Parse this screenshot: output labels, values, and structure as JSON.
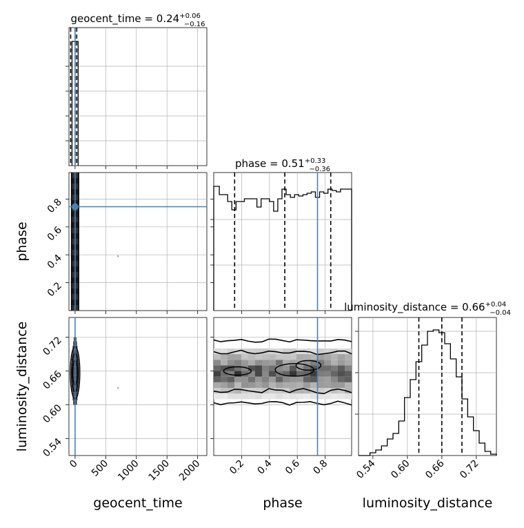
{
  "chart_data": [
    {
      "panel": "geocent_time-histogram",
      "type": "histogram",
      "title_name": "geocent_time",
      "title_value": "0.24",
      "title_plus": "+0.06",
      "title_minus": "−0.16",
      "xlim": [
        -100,
        2150
      ],
      "xticks": [
        0,
        500,
        1000,
        1500,
        2000
      ],
      "bins": [
        [
          -50,
          50,
          1.0
        ]
      ],
      "quantiles": [
        0.08,
        0.24,
        0.3
      ],
      "truth": 0.0,
      "grid": true
    },
    {
      "panel": "phase-histogram",
      "type": "histogram",
      "title_name": "phase",
      "title_value": "0.51",
      "title_plus": "+0.33",
      "title_minus": "−0.36",
      "xlim": [
        0.0,
        0.99
      ],
      "xticks": [
        0.2,
        0.4,
        0.6,
        0.8
      ],
      "ylim": [
        0,
        1.0
      ],
      "bins": [
        [
          0.0,
          0.04,
          0.9
        ],
        [
          0.04,
          0.07,
          0.84
        ],
        [
          0.07,
          0.1,
          0.84
        ],
        [
          0.1,
          0.13,
          0.79
        ],
        [
          0.13,
          0.16,
          0.73
        ],
        [
          0.16,
          0.19,
          0.79
        ],
        [
          0.19,
          0.22,
          0.79
        ],
        [
          0.22,
          0.25,
          0.81
        ],
        [
          0.25,
          0.28,
          0.81
        ],
        [
          0.28,
          0.31,
          0.81
        ],
        [
          0.31,
          0.34,
          0.75
        ],
        [
          0.34,
          0.37,
          0.81
        ],
        [
          0.37,
          0.4,
          0.81
        ],
        [
          0.4,
          0.43,
          0.79
        ],
        [
          0.43,
          0.46,
          0.72
        ],
        [
          0.46,
          0.49,
          0.81
        ],
        [
          0.49,
          0.52,
          0.88
        ],
        [
          0.52,
          0.55,
          0.84
        ],
        [
          0.55,
          0.58,
          0.82
        ],
        [
          0.58,
          0.61,
          0.84
        ],
        [
          0.61,
          0.64,
          0.83
        ],
        [
          0.64,
          0.67,
          0.84
        ],
        [
          0.67,
          0.7,
          0.85
        ],
        [
          0.7,
          0.73,
          0.86
        ],
        [
          0.73,
          0.76,
          0.82
        ],
        [
          0.76,
          0.79,
          0.86
        ],
        [
          0.79,
          0.82,
          0.85
        ],
        [
          0.82,
          0.85,
          0.88
        ],
        [
          0.85,
          0.88,
          0.87
        ],
        [
          0.88,
          0.91,
          0.86
        ],
        [
          0.91,
          0.94,
          0.88
        ],
        [
          0.94,
          0.99,
          0.88
        ]
      ],
      "quantiles": [
        0.15,
        0.51,
        0.84
      ],
      "truth": 0.745,
      "grid": true
    },
    {
      "panel": "luminosity_distance-histogram",
      "type": "histogram",
      "title_name": "luminosity_distance",
      "title_value": "0.66",
      "title_plus": "+0.04",
      "title_minus": "−0.04",
      "xlim": [
        0.515,
        0.755
      ],
      "xticks": [
        0.54,
        0.6,
        0.66,
        0.72
      ],
      "xticklabels": [
        "0.54",
        "0.60",
        "0.66",
        "0.72"
      ],
      "ylim": [
        0,
        1.0
      ],
      "bins": [
        [
          0.515,
          0.525,
          0.0
        ],
        [
          0.525,
          0.535,
          0.0
        ],
        [
          0.535,
          0.545,
          0.02
        ],
        [
          0.545,
          0.555,
          0.04
        ],
        [
          0.555,
          0.565,
          0.07
        ],
        [
          0.565,
          0.575,
          0.12
        ],
        [
          0.575,
          0.585,
          0.16
        ],
        [
          0.585,
          0.595,
          0.25
        ],
        [
          0.595,
          0.605,
          0.42
        ],
        [
          0.605,
          0.615,
          0.55
        ],
        [
          0.615,
          0.625,
          0.68
        ],
        [
          0.625,
          0.635,
          0.8
        ],
        [
          0.635,
          0.645,
          0.9
        ],
        [
          0.645,
          0.655,
          0.91
        ],
        [
          0.655,
          0.665,
          0.89
        ],
        [
          0.665,
          0.675,
          0.81
        ],
        [
          0.675,
          0.685,
          0.7
        ],
        [
          0.685,
          0.695,
          0.57
        ],
        [
          0.695,
          0.705,
          0.41
        ],
        [
          0.705,
          0.715,
          0.28
        ],
        [
          0.715,
          0.725,
          0.18
        ],
        [
          0.725,
          0.735,
          0.09
        ],
        [
          0.735,
          0.745,
          0.03
        ],
        [
          0.745,
          0.755,
          0.01
        ]
      ],
      "quantiles": [
        0.62,
        0.66,
        0.695
      ],
      "grid": true
    },
    {
      "panel": "geocent_time-vs-phase",
      "type": "scatter-2d-histogram",
      "xlim": [
        -100,
        2150
      ],
      "ylim": [
        0.0,
        0.99
      ],
      "yticks": [
        0.2,
        0.4,
        0.6,
        0.8
      ],
      "truth": [
        0.0,
        0.745
      ],
      "outlier": [
        700,
        0.39
      ],
      "grid": true
    },
    {
      "panel": "geocent_time-vs-luminosity_distance",
      "type": "scatter-2d-histogram",
      "xlim": [
        -100,
        2150
      ],
      "ylim": [
        0.51,
        0.755
      ],
      "xticks": [
        0,
        500,
        1000,
        1500,
        2000
      ],
      "yticks": [
        0.54,
        0.6,
        0.66,
        0.72
      ],
      "yticklabels": [
        "0.54",
        "0.60",
        "0.66",
        "0.72"
      ],
      "truth_x": 0.0,
      "outlier": [
        700,
        0.63
      ],
      "grid": true
    },
    {
      "panel": "phase-vs-luminosity_distance",
      "type": "scatter-2d-histogram",
      "xlim": [
        0.0,
        0.99
      ],
      "ylim": [
        0.51,
        0.755
      ],
      "xticks": [
        0.2,
        0.4,
        0.6,
        0.8
      ],
      "truth_x": 0.745,
      "grid": true
    }
  ],
  "axes": {
    "x_labels": [
      "geocent_time",
      "phase",
      "luminosity_distance"
    ],
    "y_labels": [
      "phase",
      "luminosity_distance"
    ]
  },
  "colors": {
    "truth": "#4682b4",
    "grid": "#b0b0b0",
    "line": "#000000"
  }
}
